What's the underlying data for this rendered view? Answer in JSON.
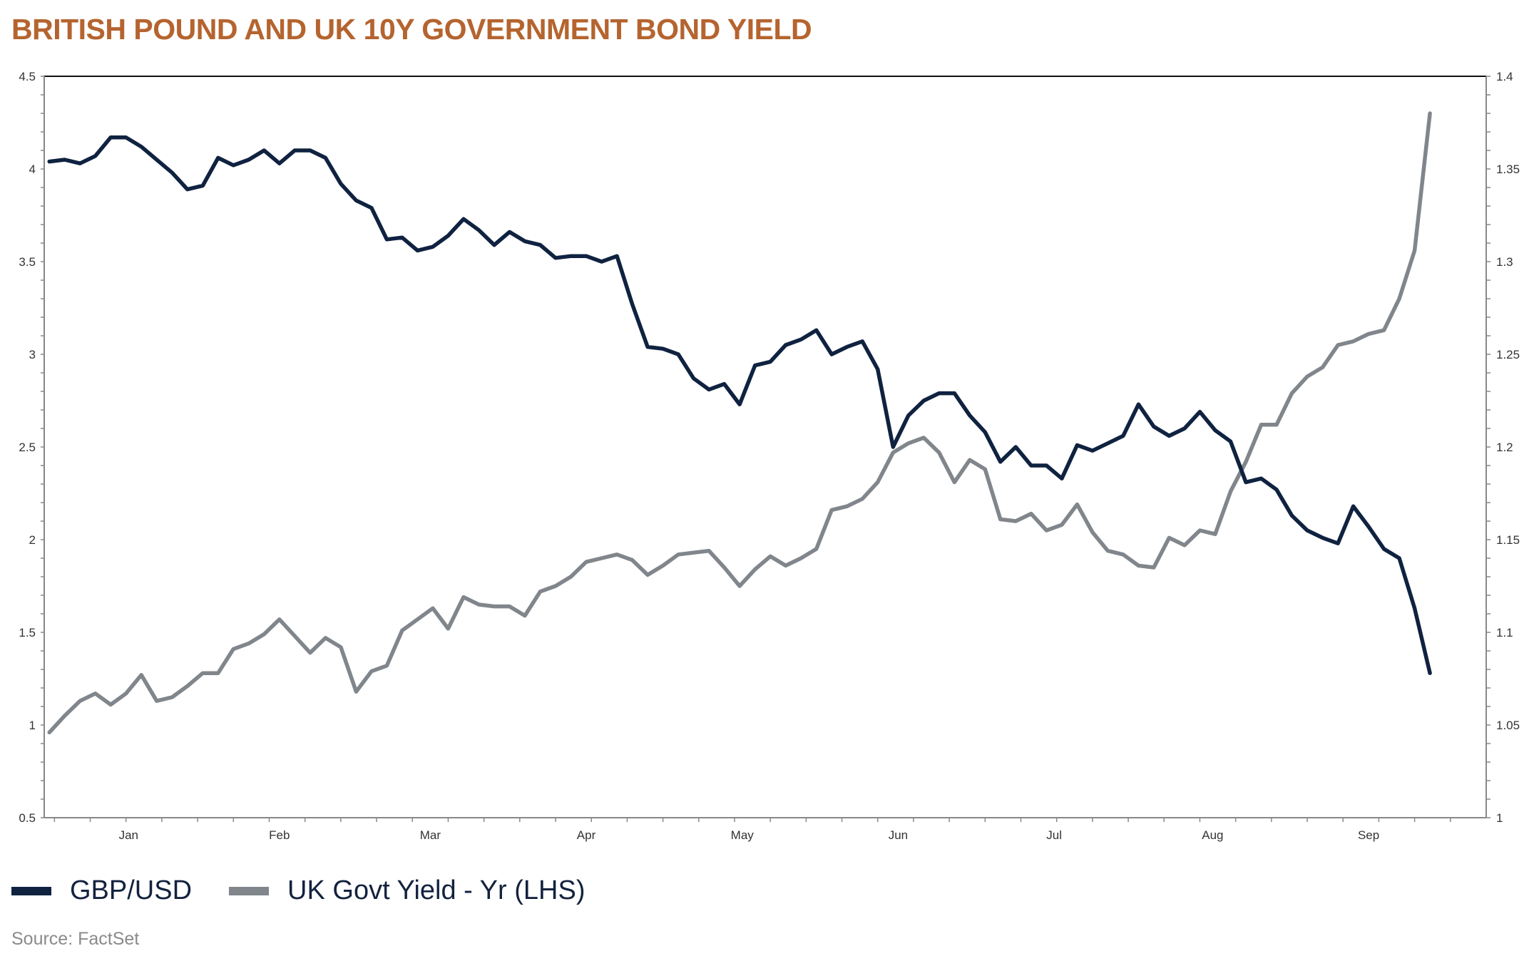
{
  "title": "BRITISH POUND AND UK 10Y GOVERNMENT BOND YIELD",
  "source": "Source: FactSet",
  "colors": {
    "title": "#b5642f",
    "gbp_usd": "#0f2240",
    "yield": "#80868b"
  },
  "chart_data": {
    "type": "line",
    "title": "BRITISH POUND AND UK 10Y GOVERNMENT BOND YIELD",
    "x_tick_labels": [
      "Jan",
      "Feb",
      "Mar",
      "Apr",
      "May",
      "Jun",
      "Jul",
      "Aug",
      "Sep"
    ],
    "xlim": [
      "01-01",
      "10-09"
    ],
    "y_left": {
      "ylim": [
        0.5,
        4.5
      ],
      "ticks": [
        "0.5",
        "1",
        "1.5",
        "2",
        "2.5",
        "3",
        "3.5",
        "4",
        "4.5"
      ]
    },
    "y_right": {
      "ylim": [
        1,
        1.4
      ],
      "ticks": [
        "1",
        "1.05",
        "1.1",
        "1.15",
        "1.2",
        "1.25",
        "1.3",
        "1.35",
        "1.4"
      ]
    },
    "grid": false,
    "legend": {
      "placement": "bottom-left",
      "entries": [
        "GBP/USD",
        "UK Govt Yield - Yr (LHS)"
      ]
    },
    "x": [
      "01-01",
      "01-04",
      "01-07",
      "01-10",
      "01-13",
      "01-16",
      "01-19",
      "01-22",
      "01-25",
      "01-28",
      "01-31",
      "02-03",
      "02-06",
      "02-09",
      "02-12",
      "02-15",
      "02-18",
      "02-21",
      "02-24",
      "02-27",
      "03-02",
      "03-05",
      "03-08",
      "03-11",
      "03-14",
      "03-17",
      "03-20",
      "03-23",
      "03-26",
      "03-29",
      "04-01",
      "04-04",
      "04-07",
      "04-10",
      "04-13",
      "04-16",
      "04-19",
      "04-22",
      "04-25",
      "04-28",
      "05-01",
      "05-04",
      "05-07",
      "05-10",
      "05-13",
      "05-16",
      "05-19",
      "05-22",
      "05-25",
      "05-28",
      "05-31",
      "06-03",
      "06-06",
      "06-09",
      "06-12",
      "06-15",
      "06-18",
      "06-21",
      "06-24",
      "06-27",
      "06-30",
      "07-03",
      "07-06",
      "07-09",
      "07-12",
      "07-15",
      "07-18",
      "07-21",
      "07-24",
      "07-27",
      "07-30",
      "08-02",
      "08-05",
      "08-08",
      "08-11",
      "08-14",
      "08-17",
      "08-20",
      "08-23",
      "08-26",
      "08-29",
      "09-01",
      "09-04",
      "09-07",
      "09-10",
      "09-13",
      "09-16",
      "09-19",
      "09-22",
      "09-25",
      "09-28"
    ],
    "series": [
      {
        "name": "GBP/USD",
        "axis": "right",
        "values": [
          1.354,
          1.355,
          1.353,
          1.357,
          1.367,
          1.367,
          1.362,
          1.355,
          1.348,
          1.339,
          1.341,
          1.356,
          1.352,
          1.355,
          1.36,
          1.353,
          1.36,
          1.36,
          1.356,
          1.342,
          1.333,
          1.329,
          1.312,
          1.313,
          1.306,
          1.308,
          1.314,
          1.323,
          1.317,
          1.309,
          1.316,
          1.311,
          1.309,
          1.302,
          1.303,
          1.303,
          1.3,
          1.303,
          1.277,
          1.254,
          1.253,
          1.25,
          1.237,
          1.231,
          1.234,
          1.223,
          1.244,
          1.246,
          1.255,
          1.258,
          1.263,
          1.25,
          1.254,
          1.257,
          1.242,
          1.2,
          1.217,
          1.225,
          1.229,
          1.229,
          1.217,
          1.208,
          1.192,
          1.2,
          1.19,
          1.19,
          1.183,
          1.201,
          1.198,
          1.202,
          1.206,
          1.223,
          1.211,
          1.206,
          1.21,
          1.219,
          1.209,
          1.203,
          1.181,
          1.183,
          1.177,
          1.163,
          1.155,
          1.151,
          1.148,
          1.168,
          1.157,
          1.145,
          1.14,
          1.113,
          1.078
        ]
      },
      {
        "name": "UK Govt Yield - Yr (LHS)",
        "axis": "left",
        "values": [
          0.96,
          1.05,
          1.13,
          1.17,
          1.11,
          1.17,
          1.27,
          1.13,
          1.15,
          1.21,
          1.28,
          1.28,
          1.41,
          1.44,
          1.49,
          1.57,
          1.48,
          1.39,
          1.47,
          1.42,
          1.18,
          1.29,
          1.32,
          1.51,
          1.57,
          1.63,
          1.52,
          1.69,
          1.65,
          1.64,
          1.64,
          1.59,
          1.72,
          1.75,
          1.8,
          1.88,
          1.9,
          1.92,
          1.89,
          1.81,
          1.86,
          1.92,
          1.93,
          1.94,
          1.85,
          1.75,
          1.84,
          1.91,
          1.86,
          1.9,
          1.95,
          2.16,
          2.18,
          2.22,
          2.31,
          2.47,
          2.52,
          2.55,
          2.47,
          2.31,
          2.43,
          2.38,
          2.11,
          2.1,
          2.14,
          2.05,
          2.08,
          2.19,
          2.04,
          1.94,
          1.92,
          1.86,
          1.85,
          2.01,
          1.97,
          2.05,
          2.03,
          2.26,
          2.42,
          2.62,
          2.62,
          2.79,
          2.88,
          2.93,
          3.05,
          3.07,
          3.11,
          3.13,
          3.3,
          3.56,
          4.3
        ]
      }
    ]
  }
}
